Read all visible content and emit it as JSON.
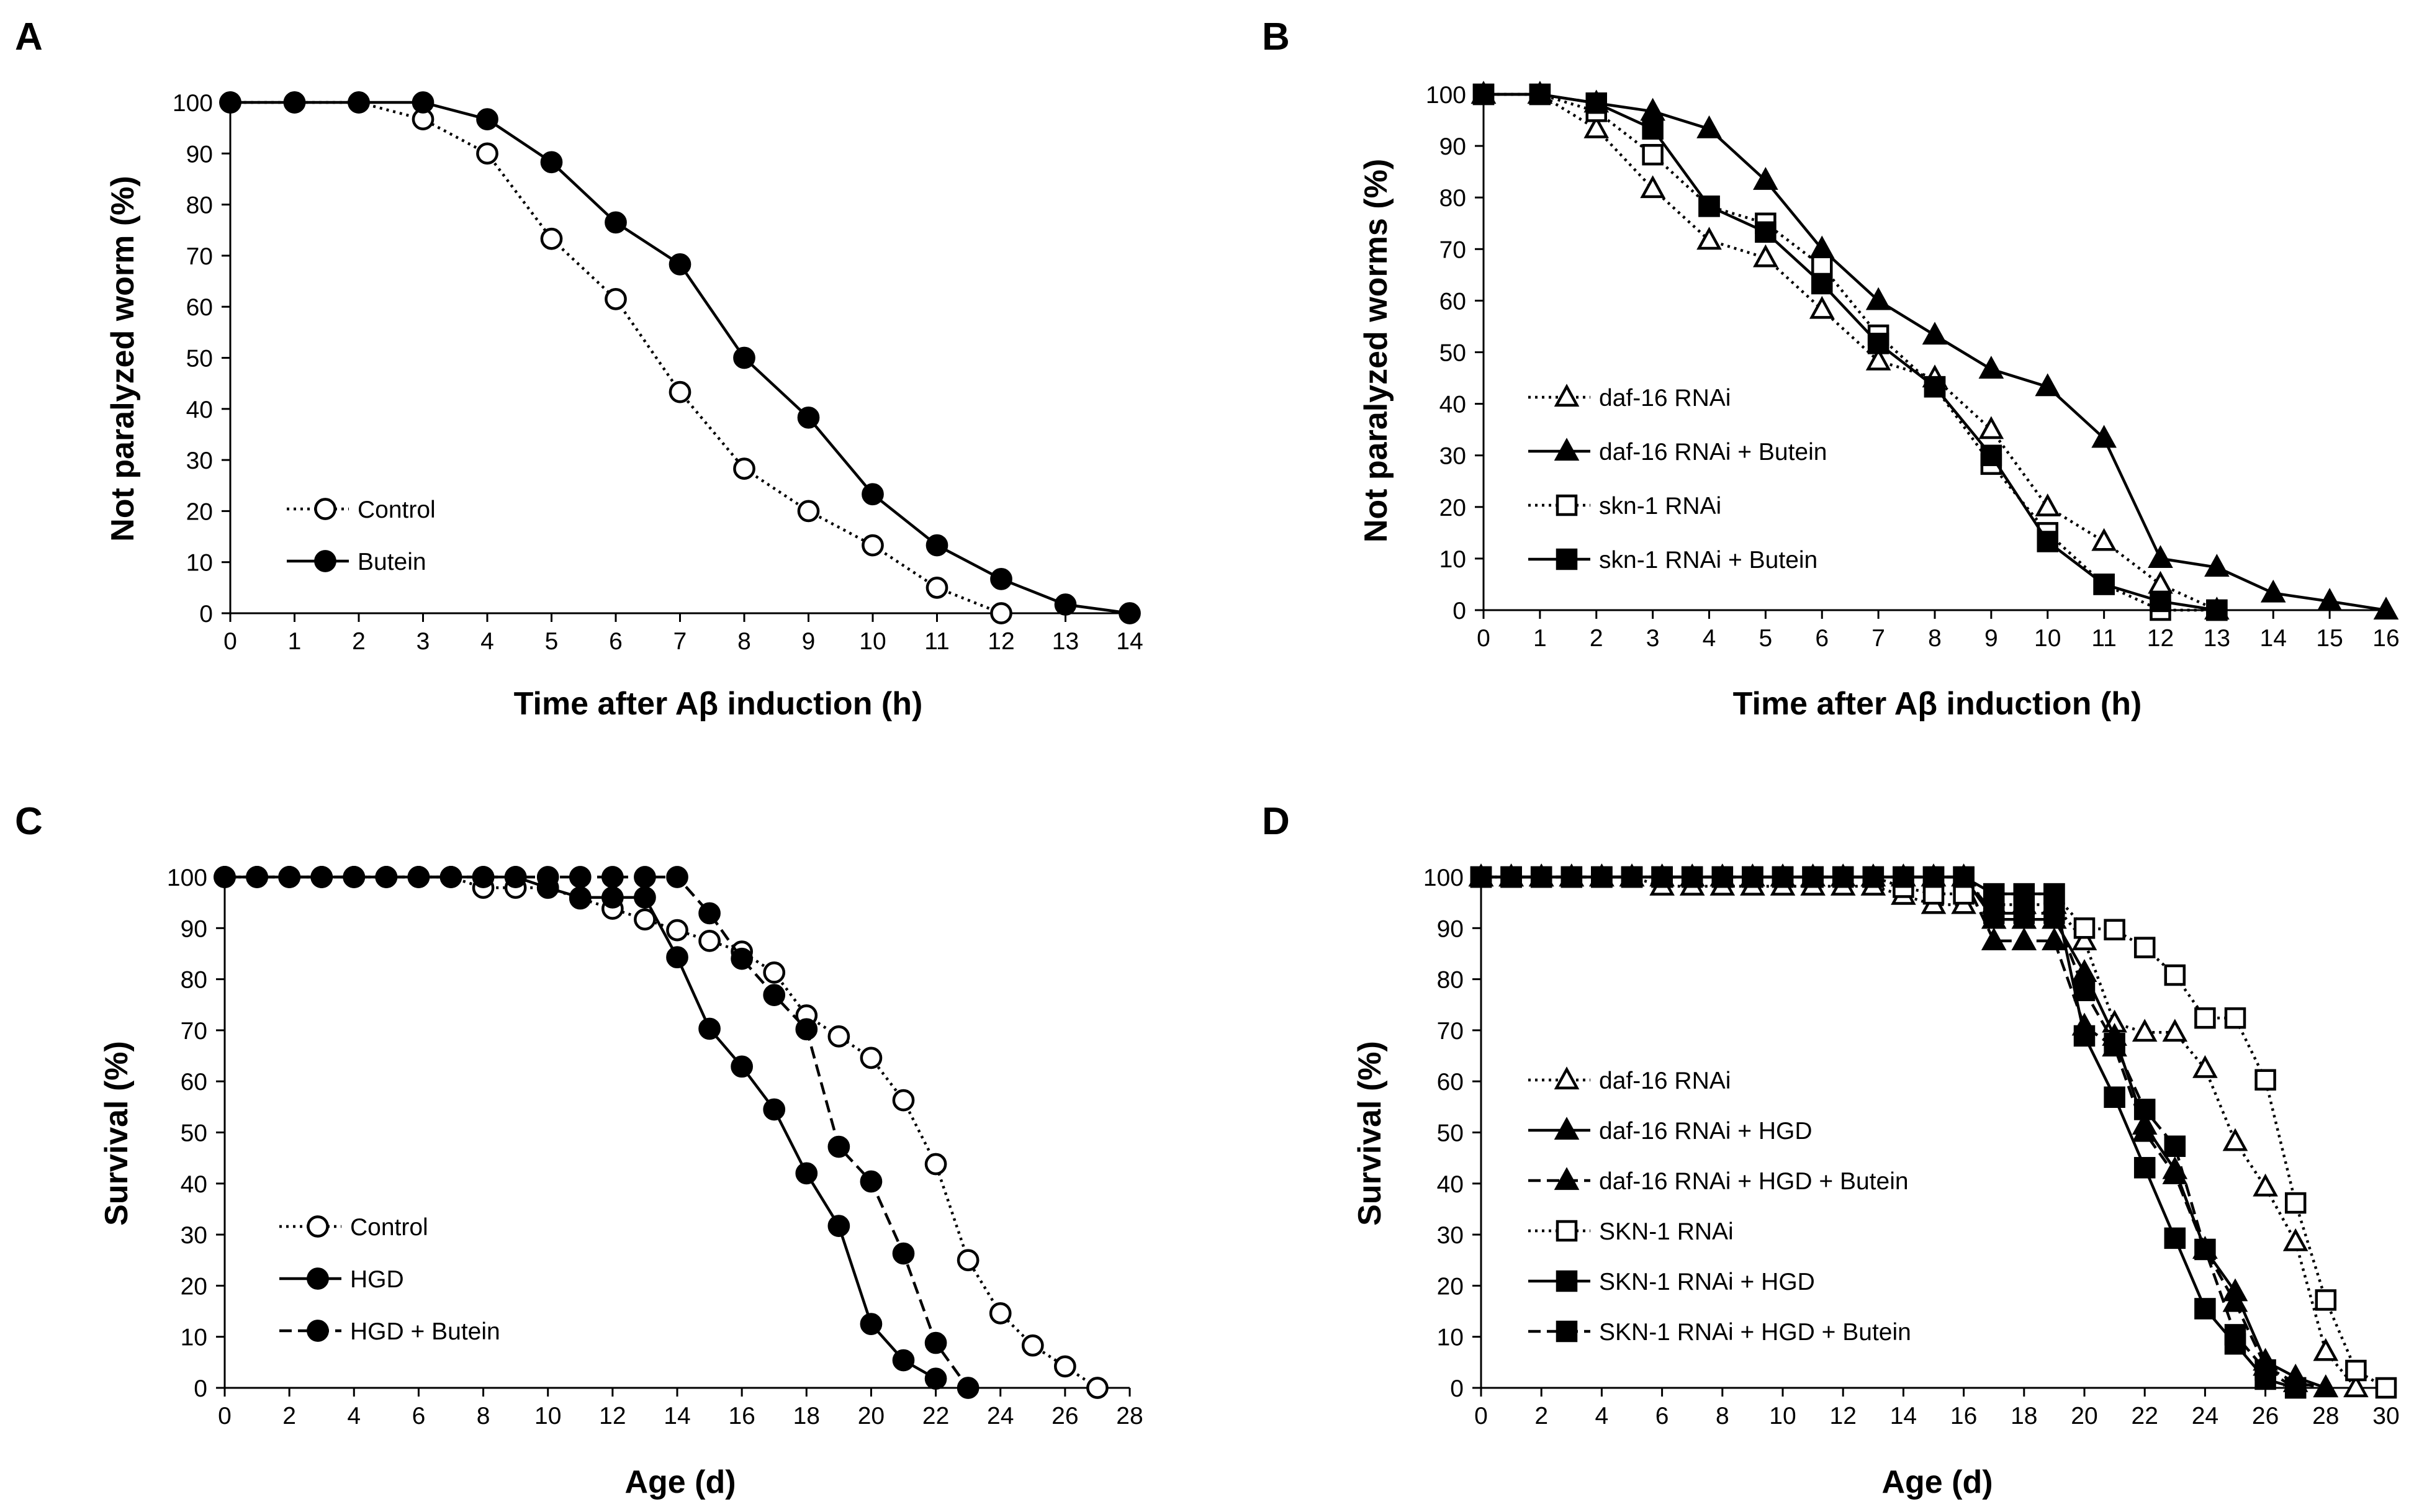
{
  "chart_data": [
    {
      "panel": "A",
      "type": "line",
      "xlabel": "Time after Aβ induction (h)",
      "ylabel": "Not paralyzed worm (%)",
      "xlim": [
        0,
        14
      ],
      "ylim": [
        0,
        100
      ],
      "x_ticks": [
        0,
        1,
        2,
        3,
        4,
        5,
        6,
        7,
        8,
        9,
        10,
        11,
        12,
        13,
        14
      ],
      "y_ticks": [
        0,
        10,
        20,
        30,
        40,
        50,
        60,
        70,
        80,
        90,
        100
      ],
      "series": [
        {
          "name": "Control",
          "marker": "circle",
          "fill": "open",
          "dash": "dotted",
          "x": [
            0,
            1,
            2,
            3,
            4,
            5,
            6,
            7,
            8,
            9,
            10,
            11,
            12
          ],
          "values": [
            100,
            100,
            100,
            96.7,
            90,
            73.3,
            61.5,
            43.3,
            28.3,
            20,
            13.3,
            5,
            0
          ]
        },
        {
          "name": "Butein",
          "marker": "circle",
          "fill": "filled",
          "dash": "solid",
          "x": [
            0,
            1,
            2,
            3,
            4,
            5,
            6,
            7,
            8,
            9,
            10,
            11,
            12,
            13,
            14
          ],
          "values": [
            100,
            100,
            100,
            100,
            96.7,
            88.3,
            76.5,
            68.3,
            50,
            38.3,
            23.3,
            13.3,
            6.7,
            1.7,
            0
          ]
        }
      ]
    },
    {
      "panel": "B",
      "type": "line",
      "xlabel": "Time after Aβ induction (h)",
      "ylabel": "Not paralyzed worms (%)",
      "xlim": [
        0,
        16
      ],
      "ylim": [
        0,
        100
      ],
      "x_ticks": [
        0,
        1,
        2,
        3,
        4,
        5,
        6,
        7,
        8,
        9,
        10,
        11,
        12,
        13,
        14,
        15,
        16
      ],
      "y_ticks": [
        0,
        10,
        20,
        30,
        40,
        50,
        60,
        70,
        80,
        90,
        100
      ],
      "series": [
        {
          "name": "daf-16 RNAi",
          "marker": "triangle",
          "fill": "open",
          "dash": "dotted",
          "x": [
            0,
            1,
            2,
            3,
            4,
            5,
            6,
            7,
            8,
            9,
            10,
            11,
            12,
            13
          ],
          "values": [
            100,
            100,
            93.3,
            81.7,
            71.7,
            68.3,
            58.3,
            48.3,
            45,
            35,
            20,
            13.3,
            5,
            0
          ]
        },
        {
          "name": "daf-16 RNAi + Butein",
          "marker": "triangle",
          "fill": "filled",
          "dash": "solid",
          "x": [
            0,
            1,
            2,
            3,
            4,
            5,
            6,
            7,
            8,
            9,
            10,
            11,
            12,
            13,
            14,
            15,
            16
          ],
          "values": [
            100,
            100,
            98.3,
            96.7,
            93.3,
            83.3,
            70,
            60,
            53.3,
            46.7,
            43.3,
            33.3,
            10,
            8.3,
            3.3,
            1.7,
            0
          ]
        },
        {
          "name": "skn-1 RNAi",
          "marker": "square",
          "fill": "open",
          "dash": "dotted",
          "x": [
            0,
            1,
            2,
            3,
            4,
            5,
            6,
            7,
            8,
            9,
            10,
            11,
            12,
            13
          ],
          "values": [
            100,
            100,
            96.7,
            88.3,
            78.3,
            75,
            66.7,
            53.3,
            43.3,
            28.3,
            15,
            5,
            0,
            0
          ]
        },
        {
          "name": "skn-1 RNAi + Butein",
          "marker": "square",
          "fill": "filled",
          "dash": "solid",
          "x": [
            0,
            1,
            2,
            3,
            4,
            5,
            6,
            7,
            8,
            9,
            10,
            11,
            12,
            13
          ],
          "values": [
            100,
            100,
            98.3,
            93.3,
            78.3,
            73.3,
            63.3,
            51.7,
            43.3,
            30,
            13.3,
            5,
            1.7,
            0
          ]
        }
      ]
    },
    {
      "panel": "C",
      "type": "line",
      "xlabel": "Age (d)",
      "ylabel": "Survival (%)",
      "xlim": [
        0,
        28
      ],
      "ylim": [
        0,
        100
      ],
      "x_ticks": [
        0,
        2,
        4,
        6,
        8,
        10,
        12,
        14,
        16,
        18,
        20,
        22,
        24,
        26,
        28
      ],
      "y_ticks": [
        0,
        10,
        20,
        30,
        40,
        50,
        60,
        70,
        80,
        90,
        100
      ],
      "series": [
        {
          "name": "Control",
          "marker": "circle",
          "fill": "open",
          "dash": "dotted",
          "x": [
            0,
            1,
            2,
            3,
            4,
            5,
            6,
            7,
            8,
            9,
            10,
            11,
            12,
            13,
            14,
            15,
            16,
            17,
            18,
            19,
            20,
            21,
            22,
            23,
            24,
            25,
            26,
            27
          ],
          "values": [
            100,
            100,
            100,
            100,
            100,
            100,
            100,
            100,
            97.9,
            97.9,
            97.9,
            95.8,
            93.8,
            91.7,
            89.6,
            87.5,
            85.4,
            81.3,
            72.9,
            68.8,
            64.6,
            56.3,
            43.8,
            25,
            14.6,
            8.3,
            4.2,
            0
          ]
        },
        {
          "name": "HGD",
          "marker": "circle",
          "fill": "filled",
          "dash": "solid",
          "x": [
            0,
            1,
            2,
            3,
            4,
            5,
            6,
            7,
            8,
            9,
            10,
            11,
            12,
            13,
            14,
            15,
            16,
            17,
            18,
            19,
            20,
            21,
            22
          ],
          "values": [
            100,
            100,
            100,
            100,
            100,
            100,
            100,
            100,
            100,
            100,
            97.9,
            96,
            96,
            96,
            84.3,
            70.3,
            62.9,
            54.5,
            42,
            31.7,
            12.5,
            5.4,
            1.8
          ]
        },
        {
          "name": "HGD + Butein",
          "marker": "circle",
          "fill": "filled",
          "dash": "dashed",
          "x": [
            0,
            1,
            2,
            3,
            4,
            5,
            6,
            7,
            8,
            9,
            10,
            11,
            12,
            13,
            14,
            15,
            16,
            17,
            18,
            19,
            20,
            21,
            22,
            23
          ],
          "values": [
            100,
            100,
            100,
            100,
            100,
            100,
            100,
            100,
            100,
            100,
            100,
            100,
            100,
            100,
            100,
            92.9,
            84,
            76.9,
            70.2,
            47.2,
            40.4,
            26.3,
            8.8,
            0
          ]
        }
      ]
    },
    {
      "panel": "D",
      "type": "line",
      "xlabel": "Age (d)",
      "ylabel": "Survival (%)",
      "xlim": [
        0,
        30
      ],
      "ylim": [
        0,
        100
      ],
      "x_ticks": [
        0,
        2,
        4,
        6,
        8,
        10,
        12,
        14,
        16,
        18,
        20,
        22,
        24,
        26,
        28,
        30
      ],
      "y_ticks": [
        0,
        10,
        20,
        30,
        40,
        50,
        60,
        70,
        80,
        90,
        100
      ],
      "series": [
        {
          "name": "daf-16 RNAi",
          "marker": "triangle",
          "fill": "open",
          "dash": "dotted",
          "x": [
            0,
            1,
            2,
            3,
            4,
            5,
            6,
            7,
            8,
            9,
            10,
            11,
            12,
            13,
            14,
            15,
            16,
            17,
            18,
            19,
            20,
            21,
            22,
            23,
            24,
            25,
            26,
            27,
            28,
            29
          ],
          "values": [
            100,
            100,
            100,
            100,
            100,
            100,
            98.2,
            98.2,
            98.2,
            98.2,
            98.2,
            98.2,
            98.2,
            98.2,
            96.4,
            94.6,
            94.6,
            94.6,
            94.6,
            94.6,
            87.5,
            71.4,
            69.6,
            69.6,
            62.5,
            48.2,
            39.3,
            28.6,
            7.1,
            0
          ]
        },
        {
          "name": "daf-16 RNAi + HGD",
          "marker": "triangle",
          "fill": "filled",
          "dash": "solid",
          "x": [
            0,
            1,
            2,
            3,
            4,
            5,
            6,
            7,
            8,
            9,
            10,
            11,
            12,
            13,
            14,
            15,
            16,
            17,
            18,
            19,
            20,
            21,
            22,
            23,
            24,
            25,
            26,
            27,
            28
          ],
          "values": [
            100,
            100,
            100,
            100,
            100,
            100,
            100,
            100,
            100,
            100,
            100,
            100,
            100,
            100,
            100,
            100,
            100,
            91.7,
            91.7,
            91.7,
            81.3,
            68.8,
            51.4,
            42.7,
            27.1,
            18.8,
            5.2,
            2.1,
            0
          ]
        },
        {
          "name": "daf-16 RNAi + HGD + Butein",
          "marker": "triangle",
          "fill": "filled",
          "dash": "dashed",
          "x": [
            0,
            1,
            2,
            3,
            4,
            5,
            6,
            7,
            8,
            9,
            10,
            11,
            12,
            13,
            14,
            15,
            16,
            17,
            18,
            19,
            20,
            21,
            22,
            23,
            24,
            25,
            26,
            27,
            28
          ],
          "values": [
            100,
            100,
            100,
            100,
            100,
            100,
            100,
            100,
            100,
            100,
            100,
            100,
            100,
            100,
            100,
            100,
            100,
            87.5,
            87.5,
            87.5,
            70.8,
            66.7,
            50,
            41.7,
            27.1,
            16.7,
            4.2,
            1,
            0
          ]
        },
        {
          "name": "SKN-1 RNAi",
          "marker": "square",
          "fill": "open",
          "dash": "dotted",
          "x": [
            0,
            1,
            2,
            3,
            4,
            5,
            6,
            7,
            8,
            9,
            10,
            11,
            12,
            13,
            14,
            15,
            16,
            17,
            18,
            19,
            20,
            21,
            22,
            23,
            24,
            25,
            26,
            27,
            28,
            29,
            30
          ],
          "values": [
            100,
            100,
            100,
            100,
            100,
            100,
            100,
            100,
            100,
            100,
            100,
            100,
            100,
            100,
            98,
            96.7,
            96.7,
            96.7,
            96.7,
            96.7,
            90,
            89.7,
            86.2,
            80.8,
            72.4,
            72.4,
            60.3,
            36.2,
            17.2,
            3.4,
            0
          ]
        },
        {
          "name": "SKN-1 RNAi + HGD",
          "marker": "square",
          "fill": "filled",
          "dash": "solid",
          "x": [
            0,
            1,
            2,
            3,
            4,
            5,
            6,
            7,
            8,
            9,
            10,
            11,
            12,
            13,
            14,
            15,
            16,
            17,
            18,
            19,
            20,
            21,
            22,
            23,
            24,
            25,
            26,
            27
          ],
          "values": [
            100,
            100,
            100,
            100,
            100,
            100,
            100,
            100,
            100,
            100,
            100,
            100,
            100,
            100,
            100,
            100,
            100,
            96.7,
            96.7,
            96.7,
            68.9,
            56.9,
            43.1,
            29.3,
            15.5,
            8.6,
            1.7,
            0
          ]
        },
        {
          "name": "SKN-1 RNAi + HGD + Butein",
          "marker": "square",
          "fill": "filled",
          "dash": "dashed",
          "x": [
            0,
            1,
            2,
            3,
            4,
            5,
            6,
            7,
            8,
            9,
            10,
            11,
            12,
            13,
            14,
            15,
            16,
            17,
            18,
            19,
            20,
            21,
            22,
            23,
            24,
            25,
            26,
            27
          ],
          "values": [
            100,
            100,
            100,
            100,
            100,
            100,
            100,
            100,
            100,
            100,
            100,
            100,
            100,
            100,
            100,
            100,
            100,
            92.9,
            92.9,
            92.9,
            77.8,
            67.4,
            54.5,
            47.3,
            27.1,
            10.4,
            3.5,
            0
          ]
        }
      ]
    }
  ]
}
